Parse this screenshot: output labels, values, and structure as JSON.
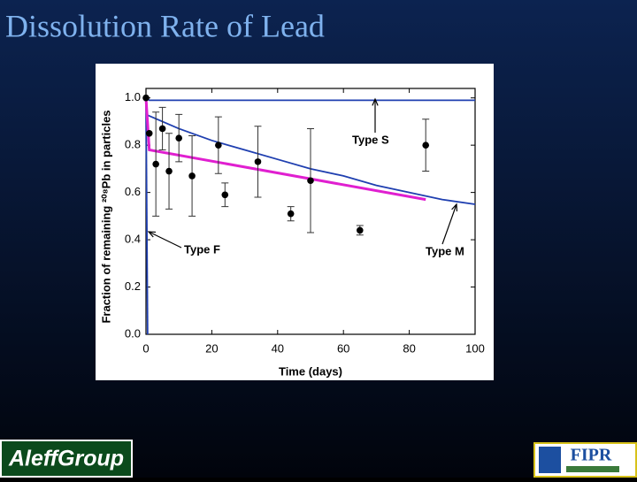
{
  "slide": {
    "title": "Dissolution Rate of Lead",
    "logo_left": "AleffGroup",
    "logo_right": "FIPR"
  },
  "chart_data": {
    "type": "scatter",
    "xlabel": "Time (days)",
    "ylabel": "Fraction of remaining ²⁰⁸Pb in particles",
    "xlim": [
      0,
      100
    ],
    "ylim": [
      0,
      1.04
    ],
    "xticks": [
      0,
      20,
      40,
      60,
      80,
      100
    ],
    "yticks": [
      {
        "value": 0,
        "label": "0.0"
      },
      0.2,
      0.4,
      0.6,
      0.8,
      {
        "value": 1,
        "label": "1.0"
      }
    ],
    "points": {
      "color": "#000000",
      "x": [
        0,
        1,
        3,
        5,
        7,
        10,
        14,
        22,
        24,
        34,
        44,
        50,
        65,
        85
      ],
      "y": [
        1.0,
        0.85,
        0.72,
        0.87,
        0.69,
        0.83,
        0.67,
        0.8,
        0.59,
        0.73,
        0.51,
        0.65,
        0.44,
        0.8
      ],
      "errors": [
        null,
        null,
        0.22,
        0.09,
        0.16,
        0.1,
        0.17,
        0.12,
        0.05,
        0.15,
        0.03,
        0.22,
        0.02,
        0.11
      ]
    },
    "lines": [
      {
        "color": "#1f3fb0",
        "x": [
          0,
          1,
          100
        ],
        "y": [
          1.0,
          0.99,
          0.99
        ]
      },
      {
        "color": "#1f3fb0",
        "x": [
          0,
          10,
          20,
          30,
          40,
          50,
          60,
          70,
          80,
          90,
          100
        ],
        "y": [
          0.93,
          0.87,
          0.82,
          0.78,
          0.74,
          0.7,
          0.67,
          0.63,
          0.6,
          0.57,
          0.55
        ]
      },
      {
        "color": "#1f3fb0",
        "x": [
          0,
          0.5
        ],
        "y": [
          1.0,
          0.0
        ]
      },
      {
        "color": "#e01fd0",
        "x": [
          0,
          1,
          85
        ],
        "y": [
          1.0,
          0.78,
          0.57
        ]
      }
    ],
    "annotations": [
      "Type S",
      "Type F",
      "Type M"
    ]
  }
}
